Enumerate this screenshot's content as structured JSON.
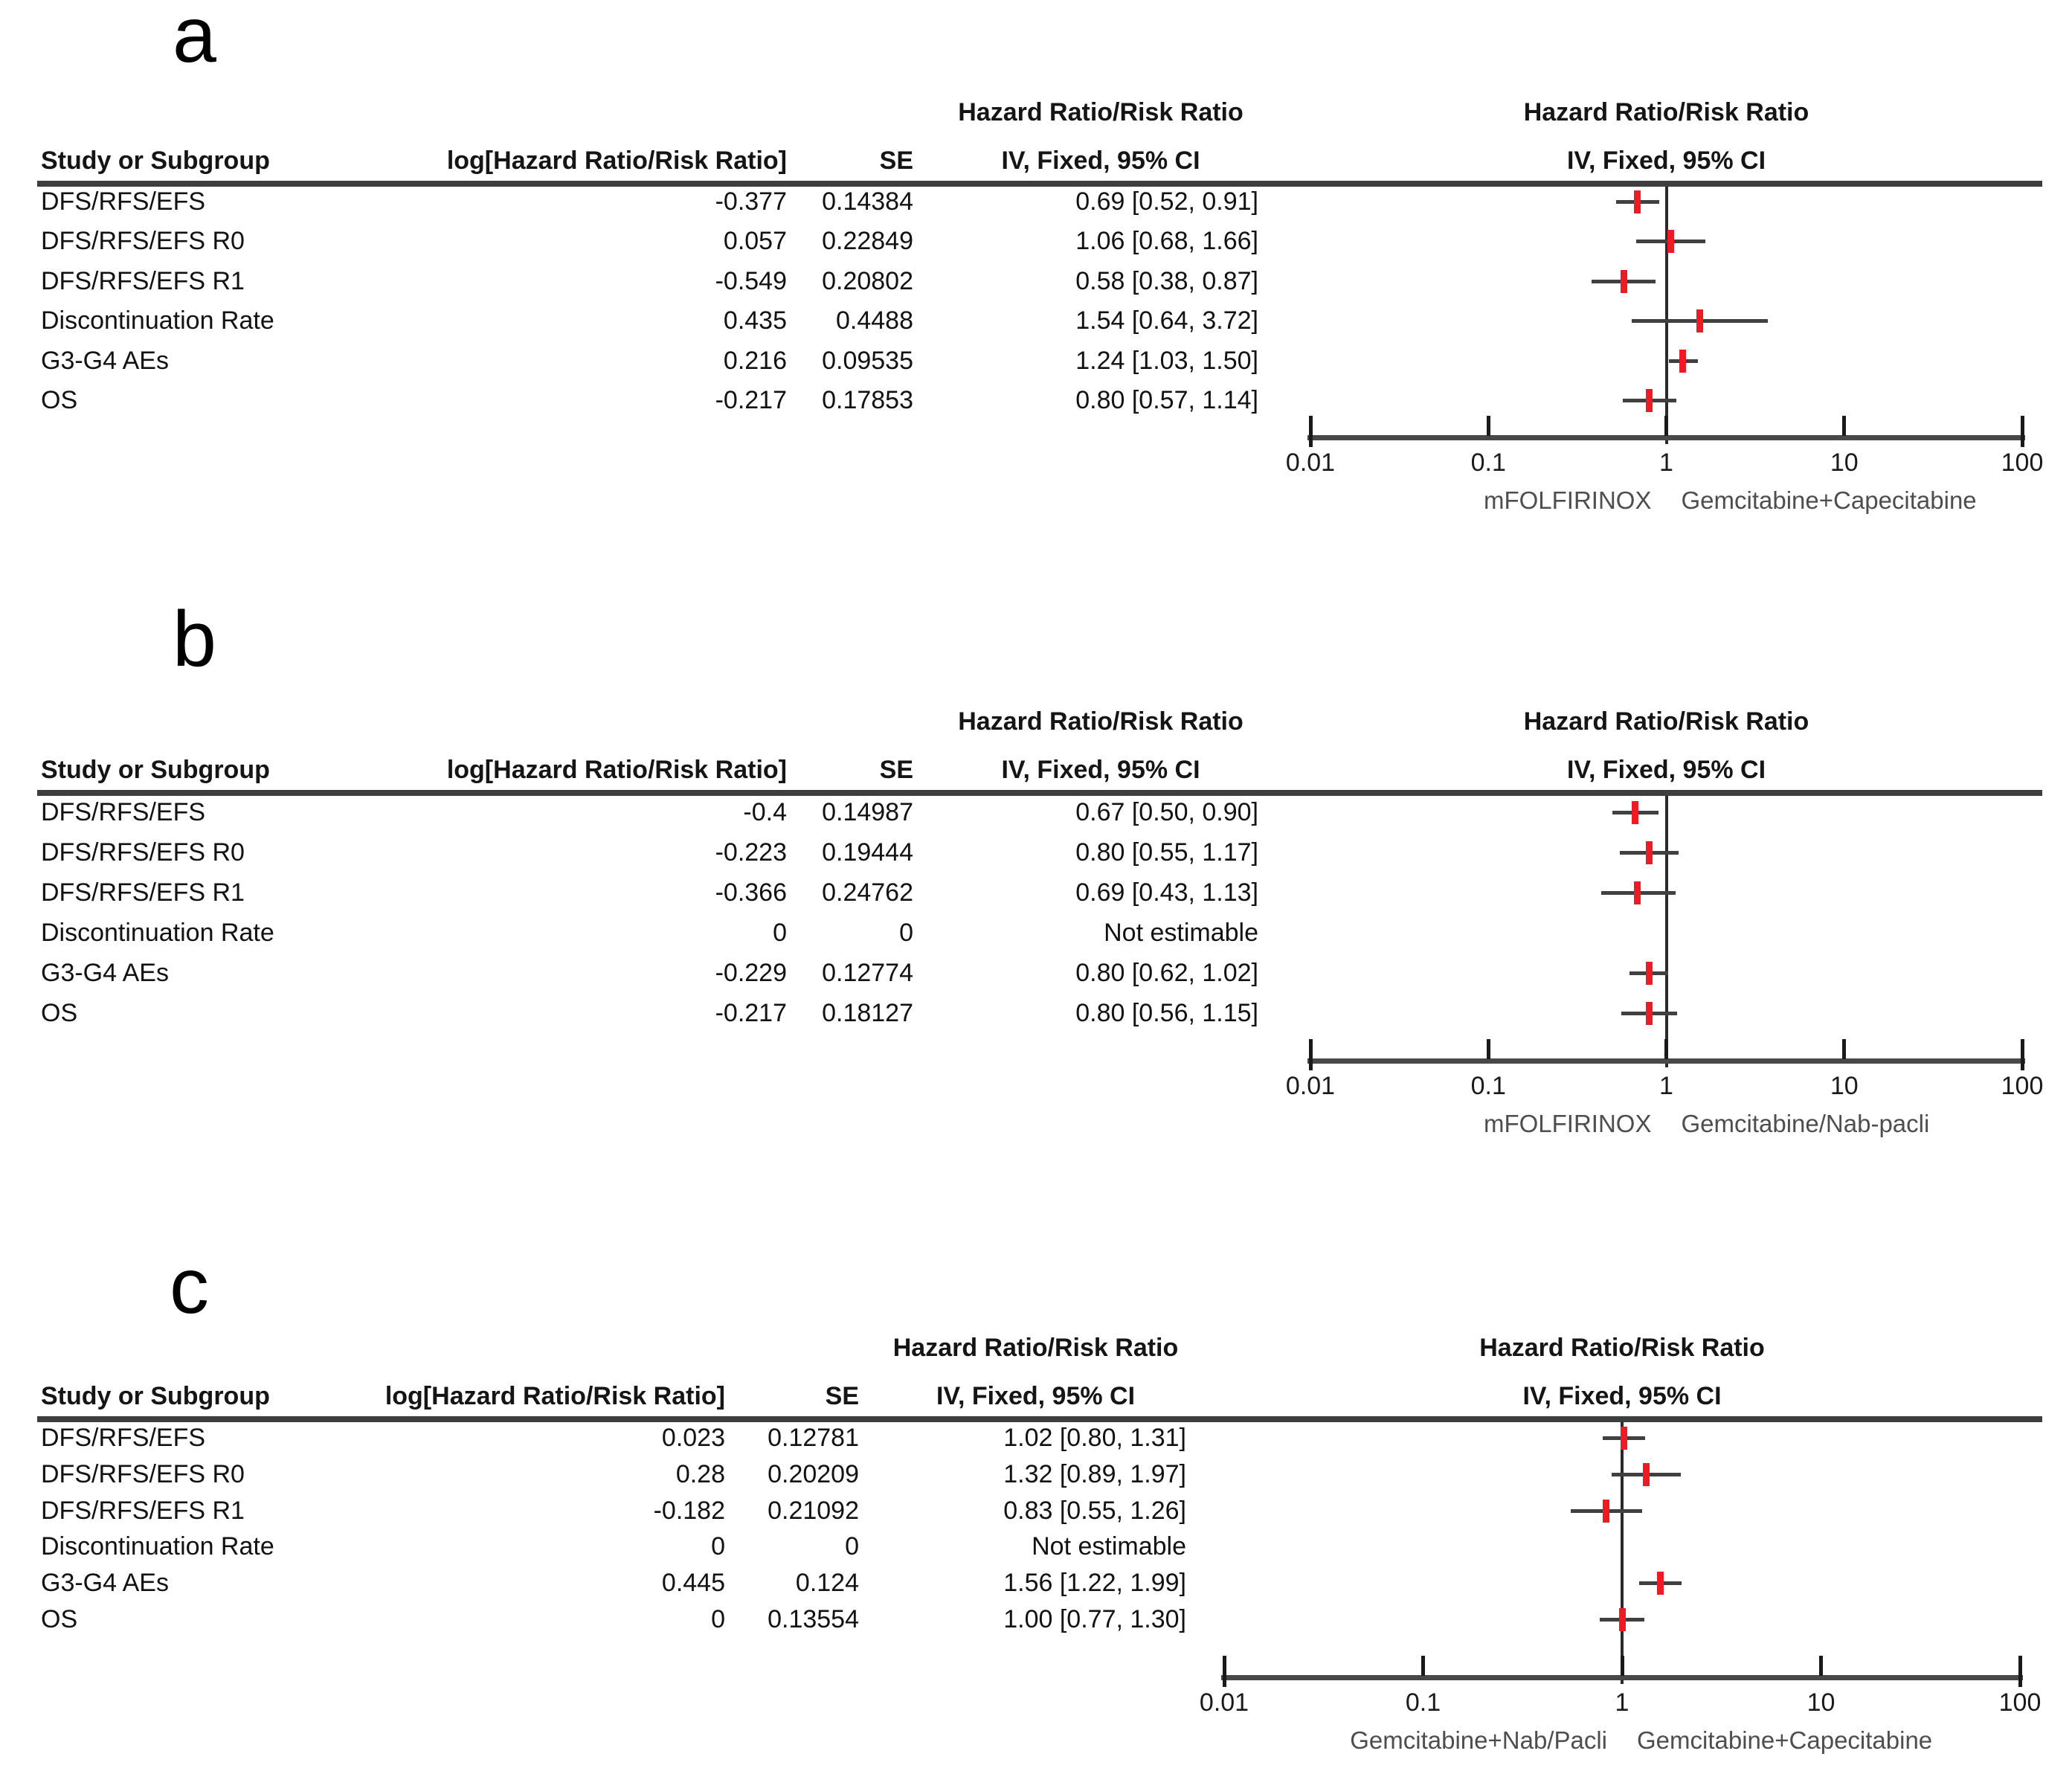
{
  "colors": {
    "marker_red": "#ed1c24",
    "ci_line_gray": "#404040",
    "axis_gray": "#47484a",
    "treatment_label_gray": "#4d4e50"
  },
  "chart_data": [
    {
      "type": "scatter",
      "subtype": "forest-plot",
      "panel": "a",
      "effect_header_line1": "Hazard Ratio/Risk Ratio",
      "effect_header_line2": "IV, Fixed, 95% CI",
      "columns": {
        "study": "Study or Subgroup",
        "loghr": "log[Hazard Ratio/Risk Ratio]",
        "se": "SE",
        "ci": "IV, Fixed, 95% CI"
      },
      "x_axis": {
        "scale": "log",
        "range": [
          0.01,
          100
        ],
        "tick_labels": [
          "0.01",
          "0.1",
          "1",
          "10",
          "100"
        ],
        "tick_values": [
          0.01,
          0.1,
          1,
          10,
          100
        ]
      },
      "footer_left": "mFOLFIRINOX",
      "footer_right": "Gemcitabine+Capecitabine",
      "rows": [
        {
          "study": "DFS/RFS/EFS",
          "loghr": "-0.377",
          "se": "0.14384",
          "ci_text": "0.69 [0.52, 0.91]",
          "est": 0.69,
          "lo": 0.52,
          "hi": 0.91
        },
        {
          "study": "DFS/RFS/EFS R0",
          "loghr": "0.057",
          "se": "0.22849",
          "ci_text": "1.06 [0.68, 1.66]",
          "est": 1.06,
          "lo": 0.68,
          "hi": 1.66
        },
        {
          "study": "DFS/RFS/EFS R1",
          "loghr": "-0.549",
          "se": "0.20802",
          "ci_text": "0.58 [0.38, 0.87]",
          "est": 0.58,
          "lo": 0.38,
          "hi": 0.87
        },
        {
          "study": "Discontinuation Rate",
          "loghr": "0.435",
          "se": "0.4488",
          "ci_text": "1.54 [0.64, 3.72]",
          "est": 1.54,
          "lo": 0.64,
          "hi": 3.72
        },
        {
          "study": "G3-G4 AEs",
          "loghr": "0.216",
          "se": "0.09535",
          "ci_text": "1.24 [1.03, 1.50]",
          "est": 1.24,
          "lo": 1.03,
          "hi": 1.5
        },
        {
          "study": "OS",
          "loghr": "-0.217",
          "se": "0.17853",
          "ci_text": "0.80 [0.57, 1.14]",
          "est": 0.8,
          "lo": 0.57,
          "hi": 1.14
        }
      ]
    },
    {
      "type": "scatter",
      "subtype": "forest-plot",
      "panel": "b",
      "effect_header_line1": "Hazard Ratio/Risk Ratio",
      "effect_header_line2": "IV, Fixed, 95% CI",
      "columns": {
        "study": "Study or Subgroup",
        "loghr": "log[Hazard Ratio/Risk Ratio]",
        "se": "SE",
        "ci": "IV, Fixed, 95% CI"
      },
      "x_axis": {
        "scale": "log",
        "range": [
          0.01,
          100
        ],
        "tick_labels": [
          "0.01",
          "0.1",
          "1",
          "10",
          "100"
        ],
        "tick_values": [
          0.01,
          0.1,
          1,
          10,
          100
        ]
      },
      "footer_left": "mFOLFIRINOX",
      "footer_right": "Gemcitabine/Nab-pacli",
      "rows": [
        {
          "study": "DFS/RFS/EFS",
          "loghr": "-0.4",
          "se": "0.14987",
          "ci_text": "0.67 [0.50, 0.90]",
          "est": 0.67,
          "lo": 0.5,
          "hi": 0.9
        },
        {
          "study": "DFS/RFS/EFS R0",
          "loghr": "-0.223",
          "se": "0.19444",
          "ci_text": "0.80 [0.55, 1.17]",
          "est": 0.8,
          "lo": 0.55,
          "hi": 1.17
        },
        {
          "study": "DFS/RFS/EFS R1",
          "loghr": "-0.366",
          "se": "0.24762",
          "ci_text": "0.69 [0.43, 1.13]",
          "est": 0.69,
          "lo": 0.43,
          "hi": 1.13
        },
        {
          "study": "Discontinuation Rate",
          "loghr": "0",
          "se": "0",
          "ci_text": "Not estimable",
          "est": null,
          "lo": null,
          "hi": null
        },
        {
          "study": "G3-G4 AEs",
          "loghr": "-0.229",
          "se": "0.12774",
          "ci_text": "0.80 [0.62, 1.02]",
          "est": 0.8,
          "lo": 0.62,
          "hi": 1.02
        },
        {
          "study": "OS",
          "loghr": "-0.217",
          "se": "0.18127",
          "ci_text": "0.80 [0.56, 1.15]",
          "est": 0.8,
          "lo": 0.56,
          "hi": 1.15
        }
      ]
    },
    {
      "type": "scatter",
      "subtype": "forest-plot",
      "panel": "c",
      "effect_header_line1": "Hazard Ratio/Risk Ratio",
      "effect_header_line2": "IV, Fixed, 95% CI",
      "columns": {
        "study": "Study or Subgroup",
        "loghr": "log[Hazard Ratio/Risk Ratio]",
        "se": "SE",
        "ci": "IV, Fixed, 95% CI"
      },
      "x_axis": {
        "scale": "log",
        "range": [
          0.01,
          100
        ],
        "tick_labels": [
          "0.01",
          "0.1",
          "1",
          "10",
          "100"
        ],
        "tick_values": [
          0.01,
          0.1,
          1,
          10,
          100
        ]
      },
      "footer_left": "Gemcitabine+Nab/Pacli",
      "footer_right": "Gemcitabine+Capecitabine",
      "rows": [
        {
          "study": "DFS/RFS/EFS",
          "loghr": "0.023",
          "se": "0.12781",
          "ci_text": "1.02 [0.80, 1.31]",
          "est": 1.02,
          "lo": 0.8,
          "hi": 1.31
        },
        {
          "study": "DFS/RFS/EFS R0",
          "loghr": "0.28",
          "se": "0.20209",
          "ci_text": "1.32 [0.89, 1.97]",
          "est": 1.32,
          "lo": 0.89,
          "hi": 1.97
        },
        {
          "study": "DFS/RFS/EFS R1",
          "loghr": "-0.182",
          "se": "0.21092",
          "ci_text": "0.83 [0.55, 1.26]",
          "est": 0.83,
          "lo": 0.55,
          "hi": 1.26
        },
        {
          "study": "Discontinuation Rate",
          "loghr": "0",
          "se": "0",
          "ci_text": "Not estimable",
          "est": null,
          "lo": null,
          "hi": null
        },
        {
          "study": "G3-G4 AEs",
          "loghr": "0.445",
          "se": "0.124",
          "ci_text": "1.56 [1.22, 1.99]",
          "est": 1.56,
          "lo": 1.22,
          "hi": 1.99
        },
        {
          "study": "OS",
          "loghr": "0",
          "se": "0.13554",
          "ci_text": "1.00 [0.77, 1.30]",
          "est": 1.0,
          "lo": 0.77,
          "hi": 1.3
        }
      ]
    }
  ]
}
